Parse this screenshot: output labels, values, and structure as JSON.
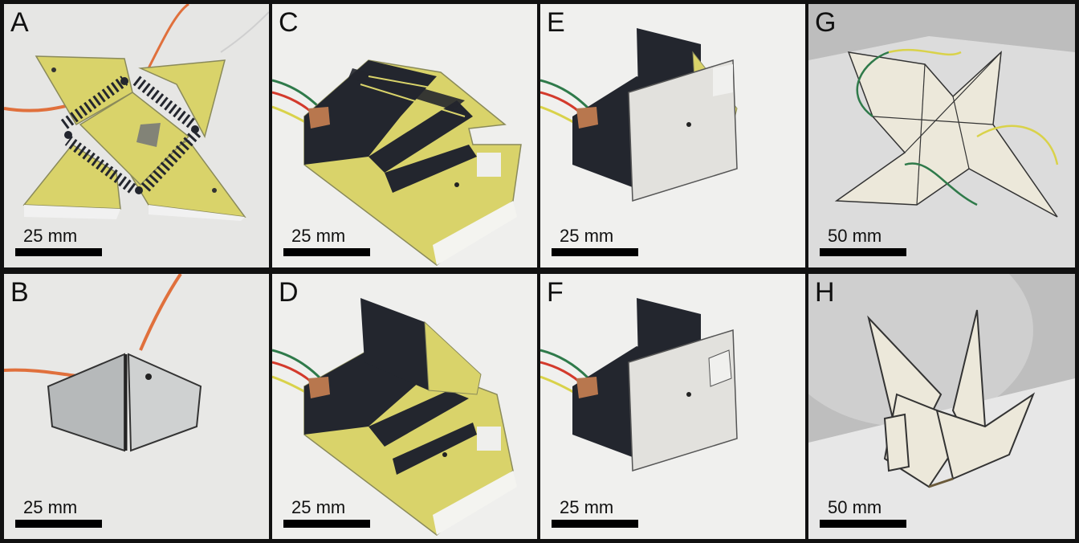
{
  "panels": [
    {
      "letter": "A",
      "scale": "25 mm"
    },
    {
      "letter": "B",
      "scale": "25 mm"
    },
    {
      "letter": "C",
      "scale": "25 mm"
    },
    {
      "letter": "D",
      "scale": "25 mm"
    },
    {
      "letter": "E",
      "scale": "25 mm"
    },
    {
      "letter": "F",
      "scale": "25 mm"
    },
    {
      "letter": "G",
      "scale": "50 mm"
    },
    {
      "letter": "H",
      "scale": "50 mm"
    }
  ],
  "colors": {
    "background": "#e9e9e9",
    "yellow_substrate": "#d9d36a",
    "circuit_dark": "#23262e",
    "paper": "#ece8da",
    "gray_face": "#b9bcbd",
    "wire_orange": "#e0703c",
    "wire_green": "#2f7a4a",
    "wire_yellow": "#d9d24a"
  }
}
